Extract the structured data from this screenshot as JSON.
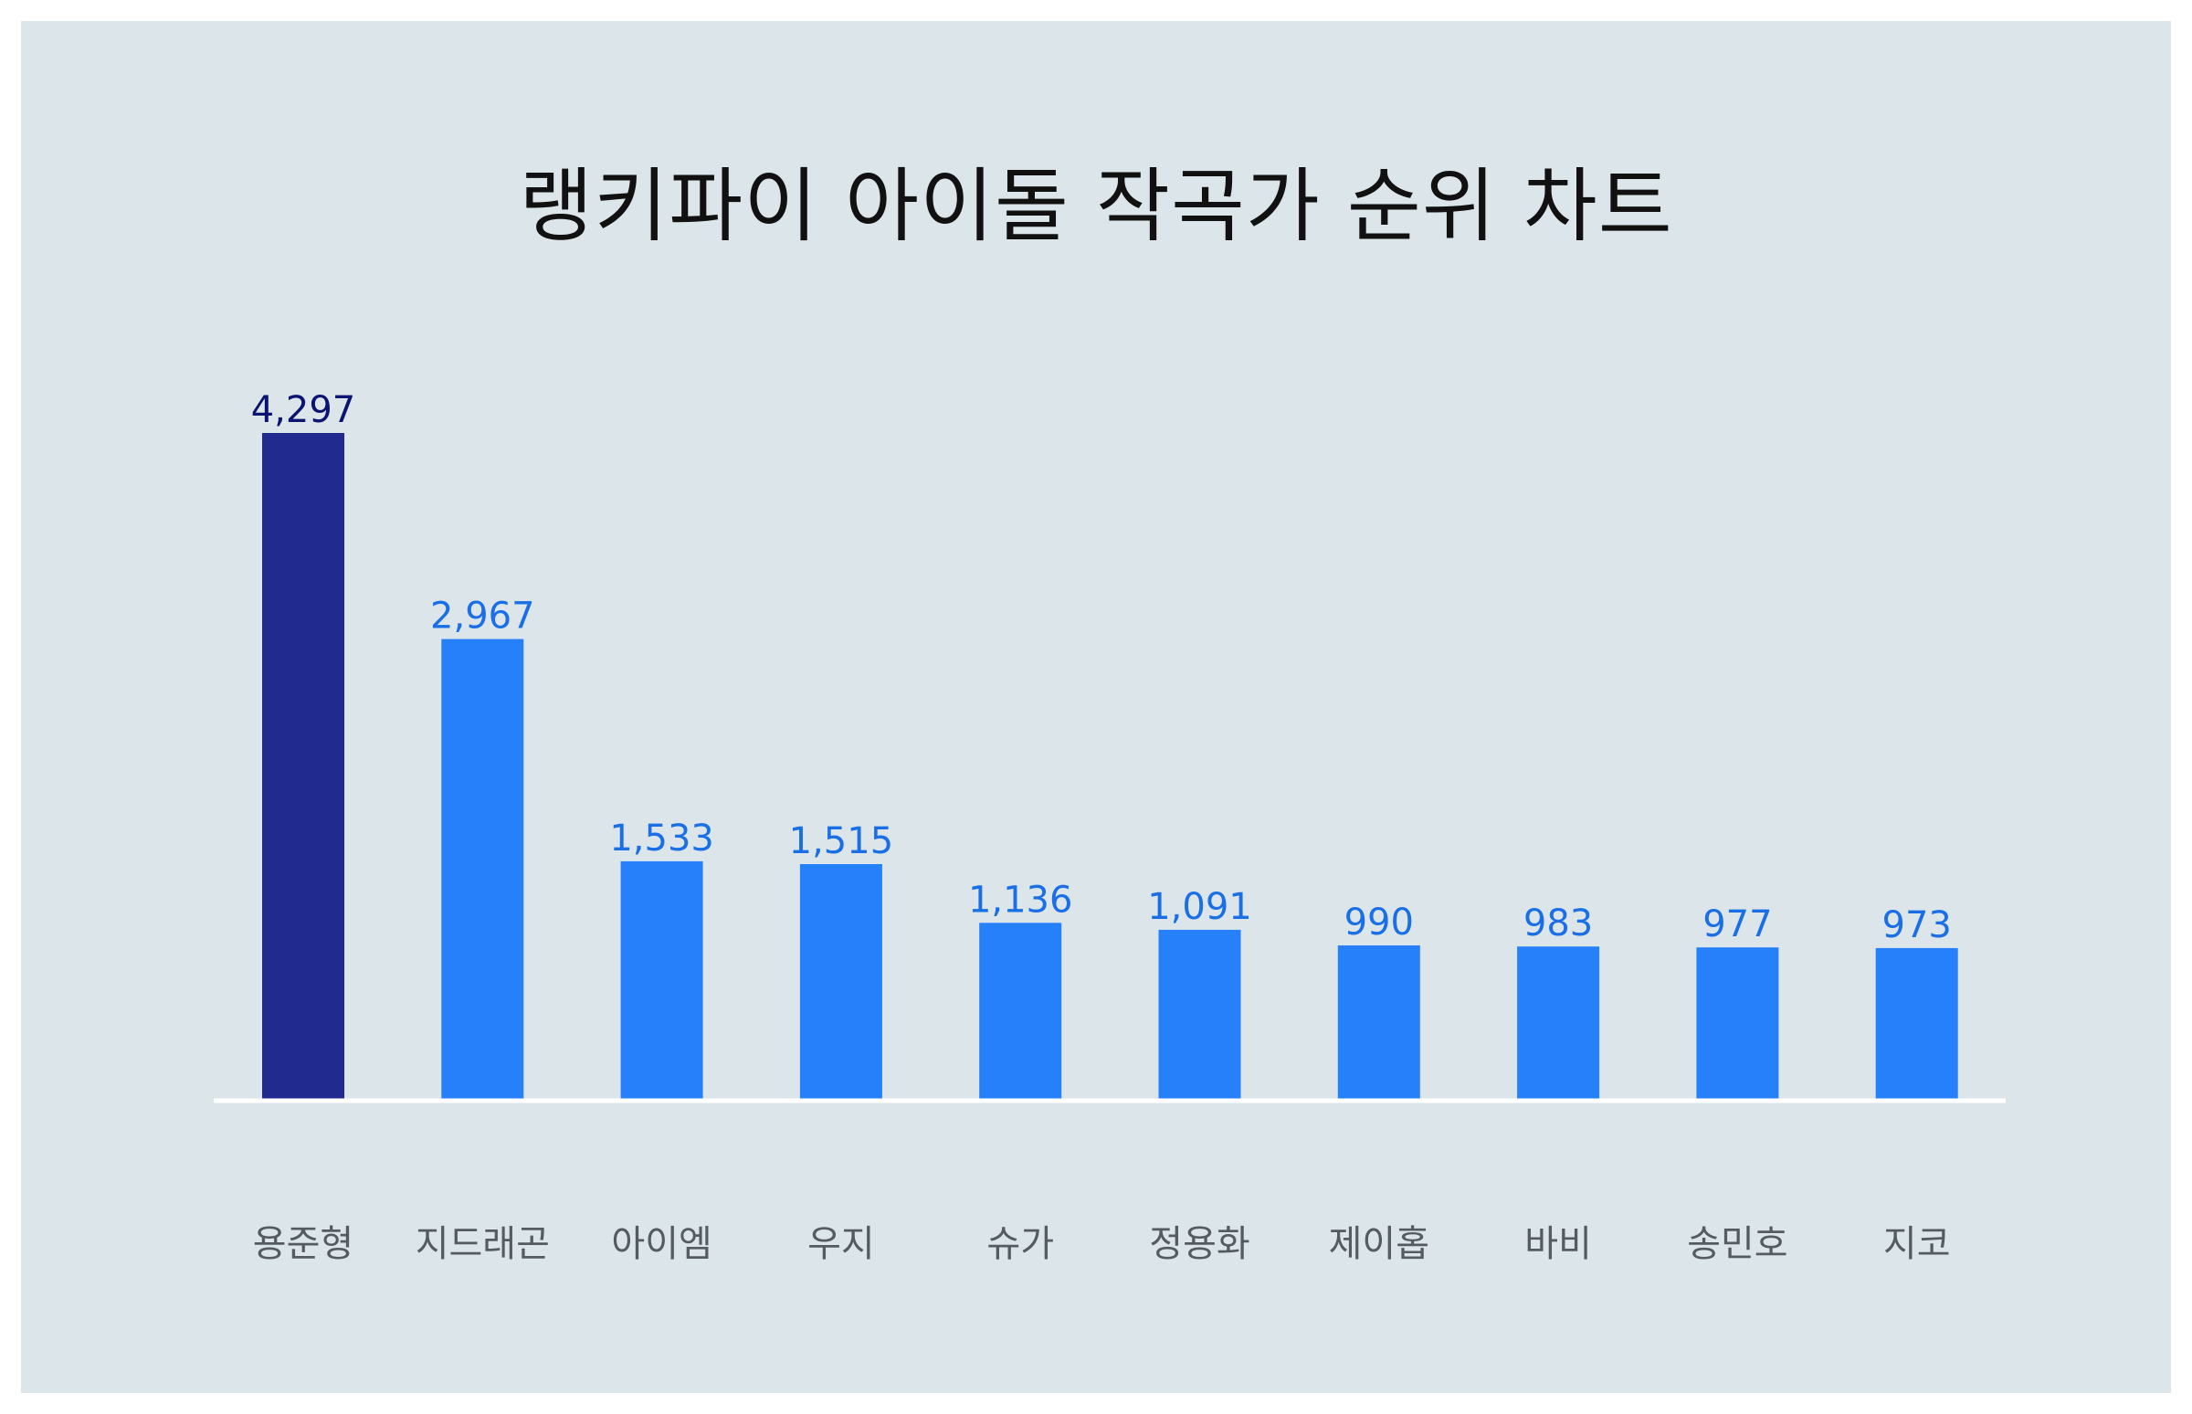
{
  "chart_data": {
    "type": "bar",
    "title": "랭키파이 아이돌 작곡가 순위 차트",
    "categories": [
      "용준형",
      "지드래곤",
      "아이엠",
      "우지",
      "슈가",
      "정용화",
      "제이홉",
      "바비",
      "송민호",
      "지코"
    ],
    "values": [
      4297,
      2967,
      1533,
      1515,
      1136,
      1091,
      990,
      983,
      977,
      973
    ],
    "value_labels": [
      "4,297",
      "2,967",
      "1,533",
      "1,515",
      "1,136",
      "1,091",
      "990",
      "983",
      "977",
      "973"
    ],
    "xlabel": "",
    "ylabel": "",
    "ylim": [
      0,
      4297
    ],
    "grid": false,
    "legend": "none",
    "colors": {
      "highlight_bar": "#212a8f",
      "bar": "#2680fa",
      "highlight_label": "#0b1470",
      "label": "#1a6fe6",
      "background": "#dce6ea",
      "baseline": "#ffffff"
    }
  }
}
